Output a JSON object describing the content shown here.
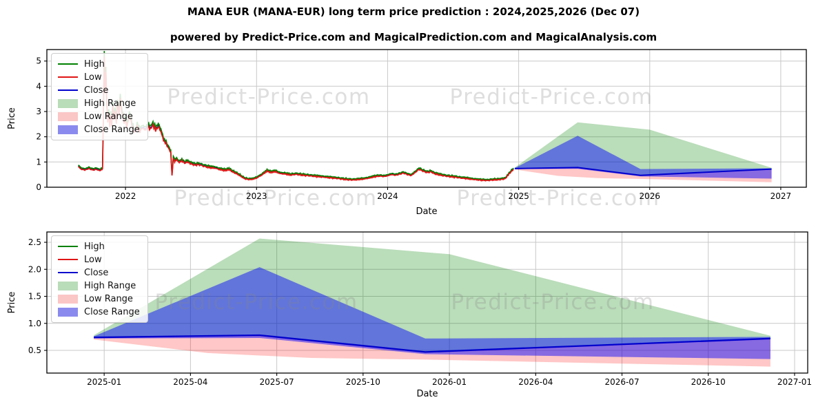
{
  "title": "MANA EUR (MANA-EUR) long term price prediction : 2024,2025,2026 (Dec 07)",
  "subtitle": "powered by Predict-Price.com and MagicalPrediction.com and MagicalAnalysis.com",
  "watermark": {
    "text": "Predict-Price.com",
    "color": "#8a8a8a",
    "opacity": 0.28
  },
  "colors": {
    "high_line": "#008000",
    "low_line": "#e01414",
    "close_line": "#0000cd",
    "high_range": "#008000",
    "low_range": "#ff0000",
    "close_range": "#0000ff",
    "high_range_opacity": 0.27,
    "low_range_opacity": 0.22,
    "close_range_opacity": 0.47,
    "grid": "#c8c8c8",
    "frame": "#000000",
    "tick_text": "#000000"
  },
  "legend": {
    "items": [
      {
        "label": "High",
        "swatch": "line",
        "color": "#008000"
      },
      {
        "label": "Low",
        "swatch": "line",
        "color": "#e01414"
      },
      {
        "label": "Close",
        "swatch": "line",
        "color": "#0000cd"
      },
      {
        "label": "High Range",
        "swatch": "patch",
        "color": "#b9dcb9"
      },
      {
        "label": "Low Range",
        "swatch": "patch",
        "color": "#fbc6c6"
      },
      {
        "label": "Close Range",
        "swatch": "patch",
        "color": "#8a8aee"
      }
    ]
  },
  "chart_data": [
    {
      "type": "line",
      "name": "history-and-prediction-chart",
      "xlabel": "Date",
      "ylabel": "Price",
      "xlim": [
        2021.4,
        2027.195
      ],
      "ylim": [
        0,
        5.455
      ],
      "grid": true,
      "legend_position": "upper left",
      "xticks": [
        {
          "v": 2022,
          "label": "2022"
        },
        {
          "v": 2023,
          "label": "2023"
        },
        {
          "v": 2024,
          "label": "2024"
        },
        {
          "v": 2025,
          "label": "2025"
        },
        {
          "v": 2026,
          "label": "2026"
        },
        {
          "v": 2027,
          "label": "2027"
        }
      ],
      "yticks": [
        {
          "v": 0,
          "label": "0"
        },
        {
          "v": 1,
          "label": "1"
        },
        {
          "v": 2,
          "label": "2"
        },
        {
          "v": 3,
          "label": "3"
        },
        {
          "v": 4,
          "label": "4"
        },
        {
          "v": 5,
          "label": "5"
        }
      ],
      "series": [
        {
          "name": "historical-close",
          "points": [
            [
              2021.64,
              0.85
            ],
            [
              2021.66,
              0.74
            ],
            [
              2021.69,
              0.7
            ],
            [
              2021.72,
              0.76
            ],
            [
              2021.75,
              0.7
            ],
            [
              2021.78,
              0.73
            ],
            [
              2021.8,
              0.68
            ],
            [
              2021.815,
              0.72
            ],
            [
              2021.825,
              0.74
            ],
            [
              2021.832,
              3.2
            ],
            [
              2021.838,
              5.25
            ],
            [
              2021.843,
              3.9
            ],
            [
              2021.85,
              4.5
            ],
            [
              2021.857,
              3.4
            ],
            [
              2021.865,
              2.6
            ],
            [
              2021.872,
              3.0
            ],
            [
              2021.88,
              2.45
            ],
            [
              2021.887,
              2.9
            ],
            [
              2021.895,
              2.5
            ],
            [
              2021.903,
              3.3
            ],
            [
              2021.91,
              2.7
            ],
            [
              2021.92,
              3.1
            ],
            [
              2021.93,
              2.6
            ],
            [
              2021.94,
              3.45
            ],
            [
              2021.95,
              2.9
            ],
            [
              2021.96,
              3.5
            ],
            [
              2021.975,
              2.95
            ],
            [
              2021.99,
              2.6
            ],
            [
              2022.0,
              2.75
            ],
            [
              2022.01,
              2.4
            ],
            [
              2022.03,
              2.9
            ],
            [
              2022.05,
              2.5
            ],
            [
              2022.07,
              2.2
            ],
            [
              2022.09,
              2.45
            ],
            [
              2022.11,
              2.25
            ],
            [
              2022.13,
              2.4
            ],
            [
              2022.15,
              2.3
            ],
            [
              2022.17,
              2.45
            ],
            [
              2022.19,
              2.35
            ],
            [
              2022.21,
              2.5
            ],
            [
              2022.23,
              2.3
            ],
            [
              2022.25,
              2.45
            ],
            [
              2022.27,
              2.25
            ],
            [
              2022.29,
              1.9
            ],
            [
              2022.31,
              1.75
            ],
            [
              2022.33,
              1.55
            ],
            [
              2022.345,
              1.42
            ],
            [
              2022.355,
              0.48
            ],
            [
              2022.365,
              1.2
            ],
            [
              2022.375,
              1.05
            ],
            [
              2022.39,
              1.12
            ],
            [
              2022.41,
              1.0
            ],
            [
              2022.43,
              1.08
            ],
            [
              2022.45,
              0.98
            ],
            [
              2022.47,
              1.03
            ],
            [
              2022.5,
              0.95
            ],
            [
              2022.53,
              0.9
            ],
            [
              2022.56,
              0.92
            ],
            [
              2022.6,
              0.85
            ],
            [
              2022.64,
              0.8
            ],
            [
              2022.68,
              0.78
            ],
            [
              2022.72,
              0.72
            ],
            [
              2022.76,
              0.68
            ],
            [
              2022.79,
              0.72
            ],
            [
              2022.82,
              0.62
            ],
            [
              2022.85,
              0.55
            ],
            [
              2022.88,
              0.45
            ],
            [
              2022.91,
              0.35
            ],
            [
              2022.94,
              0.32
            ],
            [
              2022.97,
              0.33
            ],
            [
              2023.0,
              0.38
            ],
            [
              2023.04,
              0.5
            ],
            [
              2023.08,
              0.66
            ],
            [
              2023.11,
              0.6
            ],
            [
              2023.14,
              0.64
            ],
            [
              2023.18,
              0.56
            ],
            [
              2023.22,
              0.54
            ],
            [
              2023.26,
              0.5
            ],
            [
              2023.3,
              0.53
            ],
            [
              2023.34,
              0.5
            ],
            [
              2023.38,
              0.48
            ],
            [
              2023.42,
              0.46
            ],
            [
              2023.46,
              0.44
            ],
            [
              2023.5,
              0.42
            ],
            [
              2023.54,
              0.4
            ],
            [
              2023.58,
              0.38
            ],
            [
              2023.62,
              0.36
            ],
            [
              2023.66,
              0.33
            ],
            [
              2023.7,
              0.31
            ],
            [
              2023.74,
              0.3
            ],
            [
              2023.78,
              0.32
            ],
            [
              2023.82,
              0.34
            ],
            [
              2023.86,
              0.38
            ],
            [
              2023.9,
              0.43
            ],
            [
              2023.94,
              0.46
            ],
            [
              2023.97,
              0.44
            ],
            [
              2024.0,
              0.47
            ],
            [
              2024.03,
              0.52
            ],
            [
              2024.06,
              0.49
            ],
            [
              2024.09,
              0.53
            ],
            [
              2024.12,
              0.58
            ],
            [
              2024.15,
              0.52
            ],
            [
              2024.18,
              0.48
            ],
            [
              2024.21,
              0.6
            ],
            [
              2024.24,
              0.73
            ],
            [
              2024.27,
              0.66
            ],
            [
              2024.3,
              0.6
            ],
            [
              2024.33,
              0.63
            ],
            [
              2024.36,
              0.55
            ],
            [
              2024.4,
              0.5
            ],
            [
              2024.44,
              0.46
            ],
            [
              2024.48,
              0.43
            ],
            [
              2024.52,
              0.41
            ],
            [
              2024.56,
              0.38
            ],
            [
              2024.6,
              0.36
            ],
            [
              2024.64,
              0.33
            ],
            [
              2024.68,
              0.31
            ],
            [
              2024.72,
              0.29
            ],
            [
              2024.76,
              0.28
            ],
            [
              2024.8,
              0.3
            ],
            [
              2024.84,
              0.31
            ],
            [
              2024.875,
              0.33
            ],
            [
              2024.9,
              0.36
            ],
            [
              2024.92,
              0.5
            ],
            [
              2024.94,
              0.62
            ],
            [
              2024.96,
              0.73
            ]
          ]
        }
      ],
      "prediction": {
        "high_top": [
          [
            2024.97,
            0.78
          ],
          [
            2025.45,
            2.57
          ],
          [
            2026.0,
            2.28
          ],
          [
            2026.93,
            0.77
          ]
        ],
        "close_top": [
          [
            2024.97,
            0.76
          ],
          [
            2025.45,
            2.04
          ],
          [
            2025.93,
            0.72
          ],
          [
            2026.93,
            0.75
          ]
        ],
        "close_line": [
          [
            2024.97,
            0.74
          ],
          [
            2025.45,
            0.78
          ],
          [
            2025.93,
            0.47
          ],
          [
            2026.93,
            0.72
          ]
        ],
        "close_bottom": [
          [
            2024.97,
            0.72
          ],
          [
            2025.45,
            0.73
          ],
          [
            2025.93,
            0.43
          ],
          [
            2026.93,
            0.34
          ]
        ],
        "low_bottom": [
          [
            2024.97,
            0.7
          ],
          [
            2025.3,
            0.45
          ],
          [
            2025.6,
            0.36
          ],
          [
            2025.93,
            0.33
          ],
          [
            2026.93,
            0.2
          ]
        ]
      }
    },
    {
      "type": "line",
      "name": "prediction-detail-chart",
      "xlabel": "Date",
      "ylabel": "Price",
      "xlim": [
        2024.834,
        2027.038
      ],
      "ylim": [
        0.08,
        2.691
      ],
      "grid": true,
      "legend_position": "upper left",
      "xticks": [
        {
          "v": 2025.0,
          "label": "2025-01"
        },
        {
          "v": 2025.25,
          "label": "2025-04"
        },
        {
          "v": 2025.5,
          "label": "2025-07"
        },
        {
          "v": 2025.75,
          "label": "2025-10"
        },
        {
          "v": 2026.0,
          "label": "2026-01"
        },
        {
          "v": 2026.25,
          "label": "2026-04"
        },
        {
          "v": 2026.5,
          "label": "2026-07"
        },
        {
          "v": 2026.75,
          "label": "2026-10"
        },
        {
          "v": 2027.0,
          "label": "2027-01"
        }
      ],
      "yticks": [
        {
          "v": 0.5,
          "label": "0.5"
        },
        {
          "v": 1.0,
          "label": "1.0"
        },
        {
          "v": 1.5,
          "label": "1.5"
        },
        {
          "v": 2.0,
          "label": "2.0"
        },
        {
          "v": 2.5,
          "label": "2.5"
        }
      ],
      "prediction": {
        "high_top": [
          [
            2024.97,
            0.78
          ],
          [
            2025.45,
            2.57
          ],
          [
            2026.0,
            2.28
          ],
          [
            2026.93,
            0.77
          ]
        ],
        "close_top": [
          [
            2024.97,
            0.76
          ],
          [
            2025.45,
            2.04
          ],
          [
            2025.93,
            0.72
          ],
          [
            2026.93,
            0.75
          ]
        ],
        "close_line": [
          [
            2024.97,
            0.74
          ],
          [
            2025.45,
            0.78
          ],
          [
            2025.93,
            0.47
          ],
          [
            2026.93,
            0.72
          ]
        ],
        "close_bottom": [
          [
            2024.97,
            0.72
          ],
          [
            2025.45,
            0.73
          ],
          [
            2025.93,
            0.43
          ],
          [
            2026.93,
            0.34
          ]
        ],
        "low_bottom": [
          [
            2024.97,
            0.7
          ],
          [
            2025.3,
            0.45
          ],
          [
            2025.6,
            0.36
          ],
          [
            2025.93,
            0.33
          ],
          [
            2026.93,
            0.2
          ]
        ]
      }
    }
  ]
}
